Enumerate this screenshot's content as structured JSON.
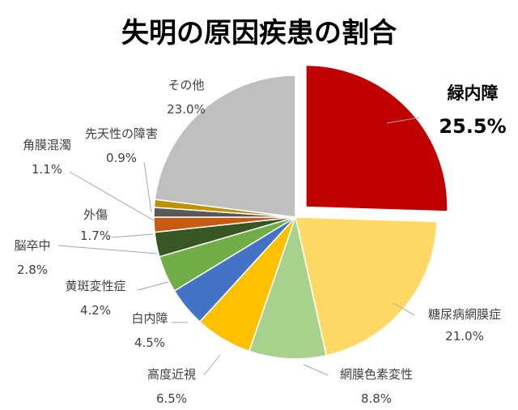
{
  "chart_data": {
    "type": "pie",
    "title": "失明の原因疾患の割合",
    "start_angle_deg": 0,
    "direction": "clockwise",
    "exploded": [
      "緑内障"
    ],
    "slices": [
      {
        "name": "緑内障",
        "value": 25.5,
        "label": "25.5%",
        "color": "#c00000"
      },
      {
        "name": "糖尿病網膜症",
        "value": 21.0,
        "label": "21.0%",
        "color": "#ffd966"
      },
      {
        "name": "網膜色素変性",
        "value": 8.8,
        "label": "8.8%",
        "color": "#a9d18e"
      },
      {
        "name": "高度近視",
        "value": 6.5,
        "label": "6.5%",
        "color": "#ffc000"
      },
      {
        "name": "白内障",
        "value": 4.5,
        "label": "4.5%",
        "color": "#4472c4"
      },
      {
        "name": "黄斑変性症",
        "value": 4.2,
        "label": "4.2%",
        "color": "#70ad47"
      },
      {
        "name": "脳卒中",
        "value": 2.8,
        "label": "2.8%",
        "color": "#375623"
      },
      {
        "name": "外傷",
        "value": 1.7,
        "label": "1.7%",
        "color": "#c55a11"
      },
      {
        "name": "角膜混濁",
        "value": 1.1,
        "label": "1.1%",
        "color": "#595959"
      },
      {
        "name": "先天性の障害",
        "value": 0.9,
        "label": "0.9%",
        "color": "#bf9000"
      },
      {
        "name": "その他",
        "value": 23.0,
        "label": "23.0%",
        "color": "#bfbfbf"
      }
    ]
  }
}
